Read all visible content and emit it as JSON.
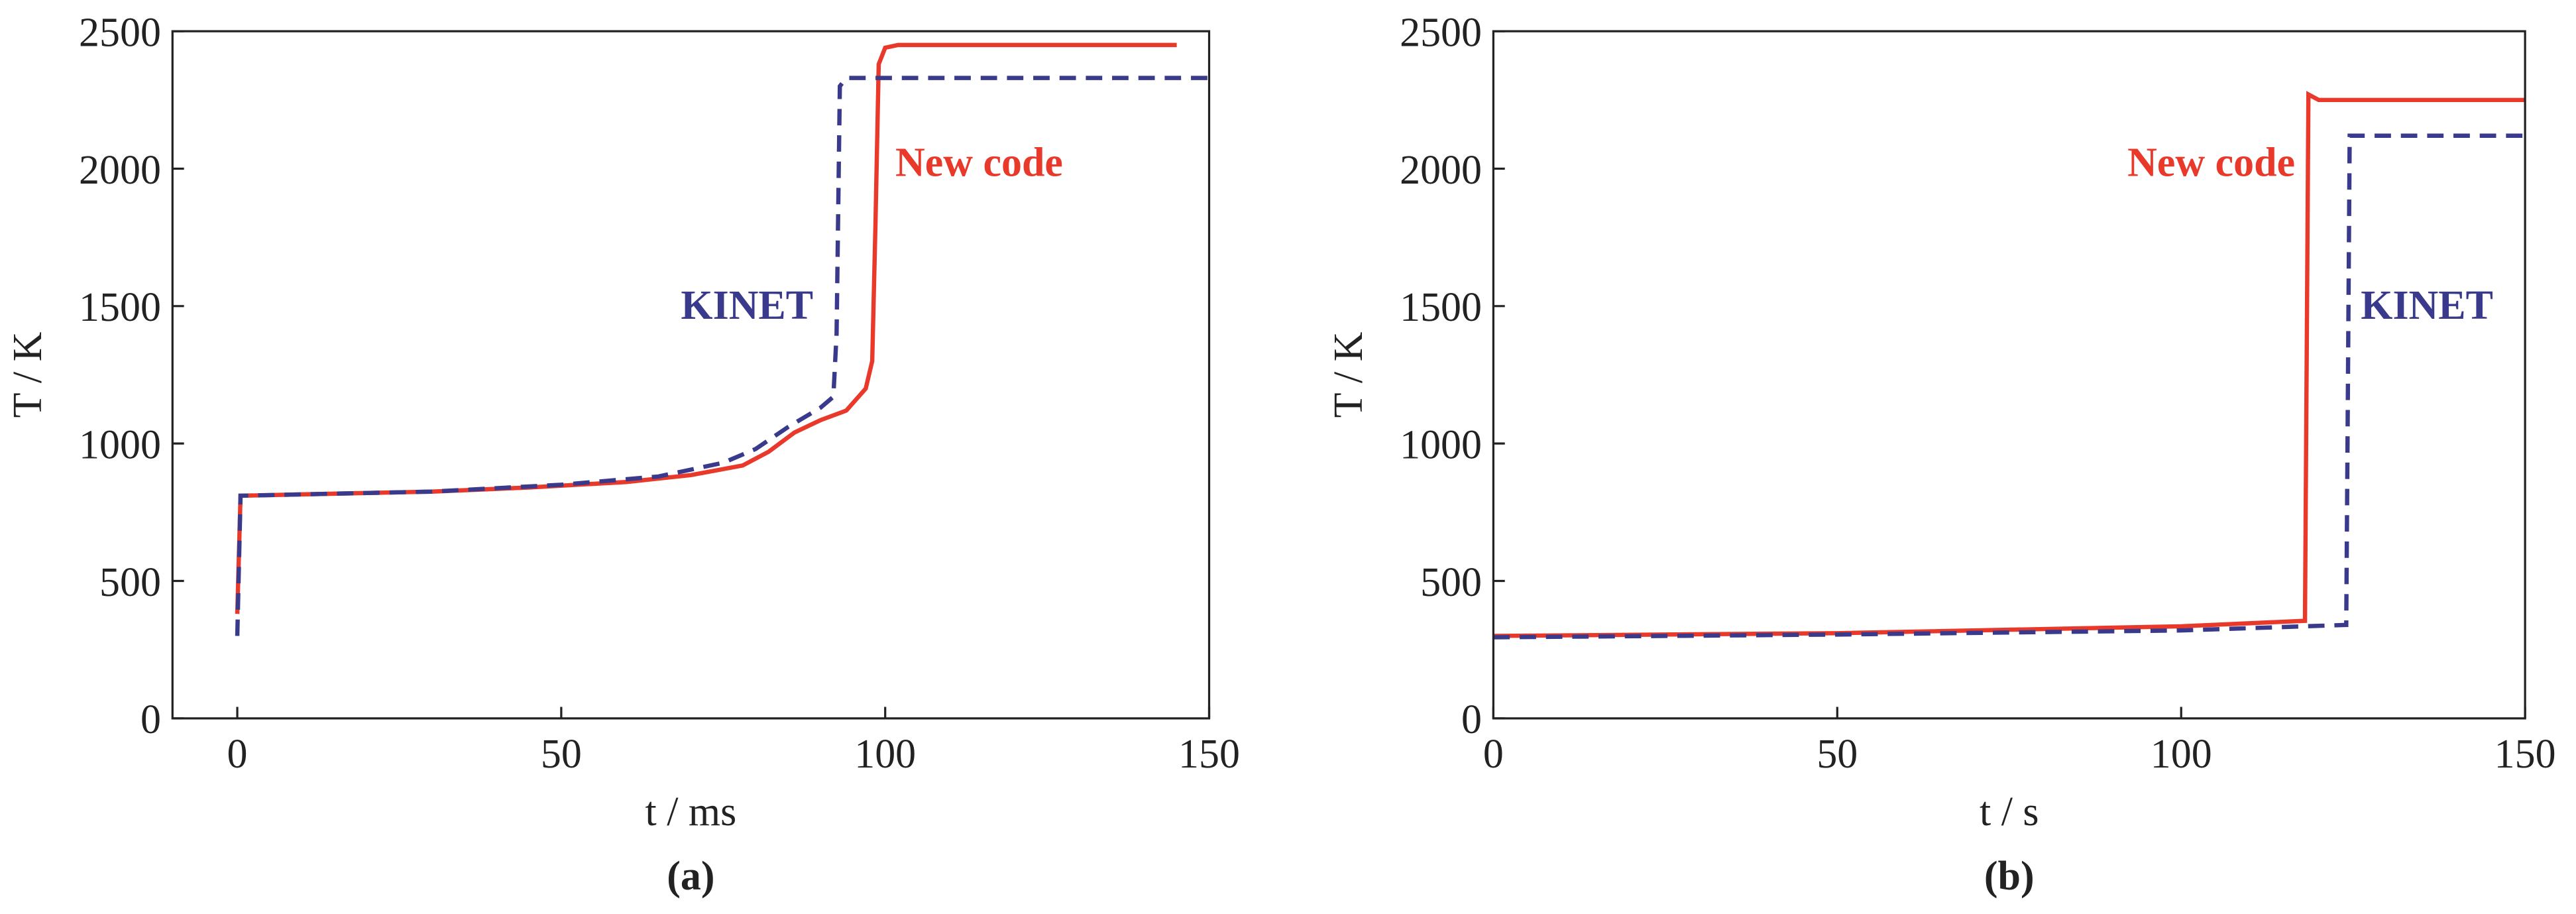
{
  "chart_data": [
    {
      "type": "line",
      "subtitle": "(a)",
      "x_label": "t / ms",
      "y_label": "T / K",
      "xlim": [
        -10,
        150
      ],
      "ylim": [
        0,
        2500
      ],
      "xticks": [
        0,
        50,
        100,
        150
      ],
      "yticks": [
        0,
        500,
        1000,
        1500,
        2000,
        2500
      ],
      "grid": false,
      "series": [
        {
          "name": "New code",
          "color": "#e8392b",
          "dash": false,
          "x": [
            0,
            0.5,
            10,
            30,
            45,
            60,
            70,
            78,
            82,
            86,
            90,
            94,
            97,
            98,
            98.5,
            99,
            100,
            102,
            145
          ],
          "values": [
            380,
            810,
            815,
            825,
            840,
            860,
            885,
            920,
            970,
            1040,
            1085,
            1120,
            1200,
            1300,
            1800,
            2380,
            2440,
            2450,
            2450
          ]
        },
        {
          "name": "KINET",
          "color": "#3a3a8c",
          "dash": true,
          "x": [
            0,
            0.5,
            10,
            30,
            50,
            65,
            75,
            80,
            85,
            90,
            92,
            92.5,
            93,
            94,
            150
          ],
          "values": [
            300,
            810,
            815,
            825,
            850,
            880,
            930,
            980,
            1060,
            1130,
            1170,
            1400,
            2300,
            2330,
            2330
          ]
        }
      ]
    },
    {
      "type": "line",
      "subtitle": "(b)",
      "x_label": "t / s",
      "y_label": "T / K",
      "xlim": [
        0,
        150
      ],
      "ylim": [
        0,
        2500
      ],
      "xticks": [
        0,
        50,
        100,
        150
      ],
      "yticks": [
        0,
        500,
        1000,
        1500,
        2000,
        2500
      ],
      "grid": false,
      "series": [
        {
          "name": "New code",
          "color": "#e8392b",
          "dash": false,
          "x": [
            0,
            50,
            100,
            118,
            118.5,
            120,
            150
          ],
          "values": [
            300,
            310,
            335,
            355,
            2270,
            2250,
            2250
          ]
        },
        {
          "name": "KINET",
          "color": "#3a3a8c",
          "dash": true,
          "x": [
            0,
            50,
            100,
            124,
            124.5,
            150
          ],
          "values": [
            295,
            305,
            320,
            340,
            2120,
            2120
          ]
        }
      ]
    }
  ]
}
